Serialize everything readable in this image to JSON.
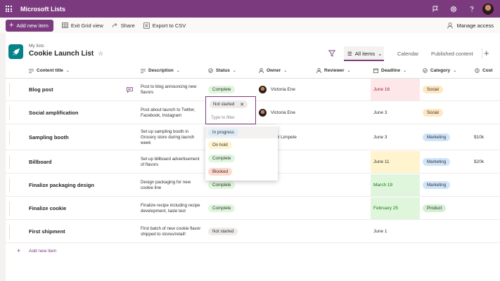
{
  "app": {
    "title": "Microsoft Lists"
  },
  "commands": {
    "add_new_item": "Add new item",
    "exit_grid_view": "Exit Grid view",
    "share": "Share",
    "export_csv": "Export to CSV",
    "manage_access": "Manage access"
  },
  "list": {
    "breadcrumb": "My lists",
    "title": "Cookie Launch List"
  },
  "views": {
    "all_items": "All items",
    "calendar": "Calendar",
    "published": "Published content"
  },
  "columns": {
    "content_title": "Content title",
    "description": "Description",
    "status": "Status",
    "owner": "Owner",
    "reviewer": "Reviewer",
    "deadline": "Deadline",
    "category": "Category",
    "cost": "Cost"
  },
  "rows": [
    {
      "title": "Blog post",
      "desc": "Post to blog announcing new flavors",
      "status": "Complete",
      "owner": "Victoria Ene",
      "deadline": "June 16",
      "category": "Social",
      "cost": ""
    },
    {
      "title": "Social amplification",
      "desc": "Post about launch to Twitter, Facebook, Instagram",
      "status": "",
      "owner": "Victoria Ene",
      "deadline": "June 3",
      "category": "Social",
      "cost": ""
    },
    {
      "title": "Sampling booth",
      "desc": "Set up sampling booth in Grocery store during launch week",
      "status": "",
      "owner": "nuel Limpele",
      "deadline": "June 3",
      "category": "Marketing",
      "cost": "$10k"
    },
    {
      "title": "Billboard",
      "desc": "Set up billboard advertisement of flavors",
      "status": "",
      "owner": "",
      "deadline": "June 11",
      "category": "Marketing",
      "cost": "$20k"
    },
    {
      "title": "Finalize packaging design",
      "desc": "Design packaging for new cookie line",
      "status": "Complete",
      "owner": "",
      "deadline": "March 19",
      "category": "Marketing",
      "cost": ""
    },
    {
      "title": "Finalize cookie",
      "desc": "Finalize recipe including recipe development, taste test",
      "status": "Complete",
      "owner": "",
      "deadline": "February 25",
      "category": "Product",
      "cost": ""
    },
    {
      "title": "First shipment",
      "desc": "First batch of new cookie flavor shipped to stores/retail!",
      "status": "Not started",
      "owner": "",
      "deadline": "June 1",
      "category": "",
      "cost": ""
    }
  ],
  "status_editor": {
    "selected": "Not started",
    "placeholder": "Type to filter"
  },
  "status_options": [
    "In progress",
    "On hold",
    "Complete",
    "Blocked"
  ],
  "add_row_label": "Add new item",
  "colors": {
    "brand": "#7b3a7e",
    "complete": "#dff6dd",
    "not_started": "#edebe9",
    "in_progress": "#deecf9",
    "on_hold": "#fff4ce",
    "blocked": "#fed9cc",
    "social": "#ffe7c2",
    "marketing": "#cfe4fa",
    "product": "#d3f0d3",
    "deadline_red": "#fde7e9",
    "deadline_yellow": "#fff4ce",
    "deadline_green": "#dff6dd"
  }
}
